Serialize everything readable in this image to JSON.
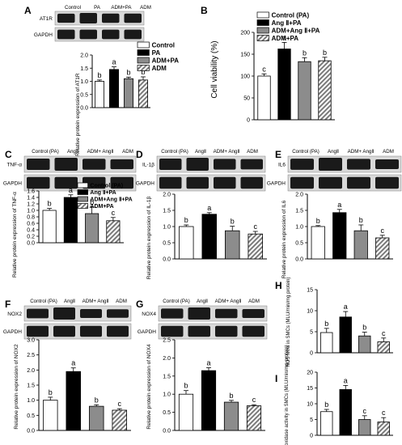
{
  "colors": {
    "control": "#ffffff",
    "treatment": "#000000",
    "combo": "#8c8c8c",
    "adm": "hatched-gray",
    "blot_band": "#1a1a1a",
    "blot_bg": "#d9d9d9"
  },
  "chart_data": [
    {
      "panel": "A",
      "type": "bar",
      "blot_lanes": [
        "Control",
        "PA",
        "ADM+PA",
        "ADM"
      ],
      "blot_rows": [
        "AT1R",
        "GAPDH"
      ],
      "categories": [
        "Control",
        "PA",
        "ADM+PA",
        "ADM"
      ],
      "values": [
        1.0,
        1.45,
        1.1,
        1.05
      ],
      "errors": [
        0.05,
        0.1,
        0.06,
        0.12
      ],
      "letters": [
        "b",
        "a",
        "b",
        "b"
      ],
      "legend": [
        "Control",
        "PA",
        "ADM+PA",
        "ADM"
      ],
      "ylabel": "Relative protein expression of AT1R",
      "ylim": [
        0,
        2.0
      ],
      "yticks": [
        "0.0",
        "0.5",
        "1.0",
        "1.5",
        "2.0"
      ]
    },
    {
      "panel": "B",
      "type": "bar",
      "blot_lanes": [],
      "blot_rows": [],
      "categories": [
        "Control (PA)",
        "Ang II+PA",
        "ADM+Ang II+PA",
        "ADM+PA"
      ],
      "values": [
        100,
        162,
        133,
        135
      ],
      "errors": [
        5,
        15,
        9,
        8
      ],
      "letters": [
        "c",
        "a",
        "b",
        "b"
      ],
      "legend": [
        "Control (PA)",
        "Ang Ⅱ+PA",
        "ADM+Ang Ⅱ+PA",
        "ADM+PA"
      ],
      "ylabel": "Cell viability (%)",
      "ylim": [
        0,
        200
      ],
      "yticks": [
        "0",
        "50",
        "100",
        "150",
        "200"
      ]
    },
    {
      "panel": "C",
      "type": "bar",
      "blot_lanes": [
        "Control (PA)",
        "AngⅡ",
        "ADM+ AngⅡ",
        "ADM"
      ],
      "blot_rows": [
        "TNF-α",
        "GAPDH"
      ],
      "categories": [
        "Control (PA)",
        "Ang II+PA",
        "ADM+Ang II+PA",
        "ADM+PA"
      ],
      "values": [
        1.0,
        1.4,
        0.9,
        0.68
      ],
      "errors": [
        0.06,
        0.08,
        0.2,
        0.1
      ],
      "letters": [
        "b",
        "a",
        "b",
        "c"
      ],
      "legend": [
        "Control (PA)",
        "Ang Ⅱ+PA",
        "ADM+Ang Ⅱ+PA",
        "ADM+PA"
      ],
      "ylabel": "Relative protein expression of TNF-α",
      "ylim": [
        0,
        1.6
      ],
      "yticks": [
        "0.0",
        "0.2",
        "0.4",
        "0.6",
        "0.8",
        "1.0",
        "1.2",
        "1.4",
        "1.6"
      ]
    },
    {
      "panel": "D",
      "type": "bar",
      "blot_lanes": [
        "Control (PA)",
        "AngⅡ",
        "ADM+ AngⅡ",
        "ADM"
      ],
      "blot_rows": [
        "IL-1β",
        "GAPDH"
      ],
      "categories": [
        "Control (PA)",
        "Ang II+PA",
        "ADM+Ang II+PA",
        "ADM+PA"
      ],
      "values": [
        1.0,
        1.38,
        0.87,
        0.77
      ],
      "errors": [
        0.05,
        0.05,
        0.14,
        0.08
      ],
      "letters": [
        "b",
        "a",
        "b",
        "c"
      ],
      "legend": [],
      "ylabel": "Relative protein expression of IL-1β",
      "ylim": [
        0,
        2.0
      ],
      "yticks": [
        "0.0",
        "0.5",
        "1.0",
        "1.5",
        "2.0"
      ]
    },
    {
      "panel": "E",
      "type": "bar",
      "blot_lanes": [
        "Control (PA)",
        "AngⅡ",
        "ADM+ AngⅡ",
        "ADM"
      ],
      "blot_rows": [
        "IL6",
        "GAPDH"
      ],
      "categories": [
        "Control (PA)",
        "Ang II+PA",
        "ADM+Ang II+PA",
        "ADM+PA"
      ],
      "values": [
        1.0,
        1.43,
        0.87,
        0.65
      ],
      "errors": [
        0.03,
        0.1,
        0.18,
        0.08
      ],
      "letters": [
        "b",
        "a",
        "b",
        "c"
      ],
      "legend": [],
      "ylabel": "Relative protein expression of IL6",
      "ylim": [
        0,
        2.0
      ],
      "yticks": [
        "0.0",
        "0.5",
        "1.0",
        "1.5",
        "2.0"
      ]
    },
    {
      "panel": "F",
      "type": "bar",
      "blot_lanes": [
        "Control (PA)",
        "AngⅡ",
        "ADM+ AngⅡ",
        "ADM"
      ],
      "blot_rows": [
        "NOX2",
        "GAPDH"
      ],
      "categories": [
        "Control (PA)",
        "Ang II+PA",
        "ADM+Ang II+PA",
        "ADM+PA"
      ],
      "values": [
        1.0,
        1.95,
        0.8,
        0.67
      ],
      "errors": [
        0.1,
        0.12,
        0.05,
        0.05
      ],
      "letters": [
        "b",
        "a",
        "b",
        "c"
      ],
      "legend": [],
      "ylabel": "Relative protein expression of NOX2",
      "ylim": [
        0,
        3.0
      ],
      "yticks": [
        "0.0",
        "0.5",
        "1.0",
        "1.5",
        "2.0",
        "2.5",
        "3.0"
      ]
    },
    {
      "panel": "G",
      "type": "bar",
      "blot_lanes": [
        "Control (PA)",
        "AngⅡ",
        "ADM+ AngⅡ",
        "ADM"
      ],
      "blot_rows": [
        "NOX4",
        "GAPDH"
      ],
      "categories": [
        "Control (PA)",
        "Ang II+PA",
        "ADM+Ang II+PA",
        "ADM+PA"
      ],
      "values": [
        1.0,
        1.65,
        0.78,
        0.68
      ],
      "errors": [
        0.1,
        0.08,
        0.05,
        0.03
      ],
      "letters": [
        "b",
        "a",
        "b",
        "c"
      ],
      "legend": [],
      "ylabel": "Relative protein expression of NOX4",
      "ylim": [
        0,
        2.5
      ],
      "yticks": [
        "0.0",
        "0.5",
        "1.0",
        "1.5",
        "2.0",
        "2.5"
      ]
    },
    {
      "panel": "H",
      "type": "bar",
      "blot_lanes": [],
      "blot_rows": [],
      "categories": [
        "Control (PA)",
        "Ang II+PA",
        "ADM+Ang II+PA",
        "ADM+PA"
      ],
      "values": [
        4.8,
        8.5,
        4.0,
        2.6
      ],
      "errors": [
        1.0,
        1.3,
        0.9,
        0.9
      ],
      "letters": [
        "b",
        "a",
        "b",
        "c"
      ],
      "legend": [],
      "ylabel": "ROS level in SMCs (MLU/min/mg protein)",
      "ylim": [
        0,
        15
      ],
      "yticks": [
        "0",
        "5",
        "10",
        "15"
      ]
    },
    {
      "panel": "I",
      "type": "bar",
      "blot_lanes": [],
      "blot_rows": [],
      "categories": [
        "Control (PA)",
        "Ang II+PA",
        "ADM+Ang II+PA",
        "ADM+PA"
      ],
      "values": [
        7.5,
        14.5,
        5.0,
        4.2
      ],
      "errors": [
        0.7,
        1.3,
        1.2,
        1.4
      ],
      "letters": [
        "b",
        "a",
        "c",
        "c"
      ],
      "legend": [],
      "ylabel": "NADPH oxidase activity in SMCs (MLU/min/mg protein)",
      "ylim": [
        0,
        20
      ],
      "yticks": [
        "0",
        "5",
        "10",
        "15",
        "20"
      ]
    }
  ]
}
